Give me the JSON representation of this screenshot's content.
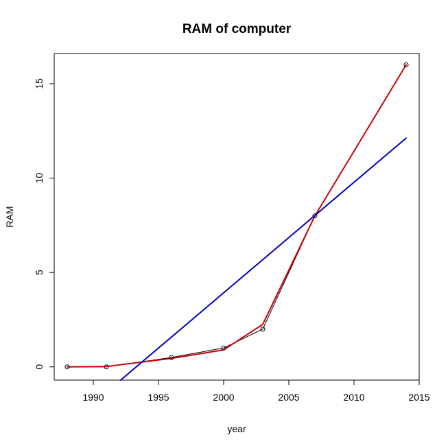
{
  "chart_data": {
    "type": "line",
    "title": "RAM of computer",
    "xlabel": "year",
    "ylabel": "RAM",
    "xlim": [
      1987,
      2015
    ],
    "ylim": [
      -0.7,
      16.6
    ],
    "x_ticks": [
      "1990",
      "1995",
      "2000",
      "2005",
      "2010",
      "2015"
    ],
    "y_ticks": [
      "0",
      "5",
      "10",
      "15"
    ],
    "grid": false,
    "series": [
      {
        "kind": "points+line",
        "color": "#000000",
        "points": [
          [
            1988,
            0
          ],
          [
            1991,
            0
          ],
          [
            1996,
            0.5
          ],
          [
            2000,
            1.0
          ],
          [
            2003,
            2.0
          ],
          [
            2007,
            8.0
          ],
          [
            2014,
            16.0
          ]
        ]
      },
      {
        "kind": "line",
        "color": "#cc0000",
        "points": [
          [
            1988,
            0
          ],
          [
            1991,
            0.02
          ],
          [
            1996,
            0.45
          ],
          [
            2000,
            0.9
          ],
          [
            2003,
            2.25
          ],
          [
            2007,
            8.0
          ],
          [
            2014,
            16.0
          ]
        ]
      },
      {
        "kind": "line",
        "color": "#0000bb",
        "points": [
          [
            1992.1,
            -0.7
          ],
          [
            2014,
            12.12
          ]
        ]
      }
    ]
  }
}
